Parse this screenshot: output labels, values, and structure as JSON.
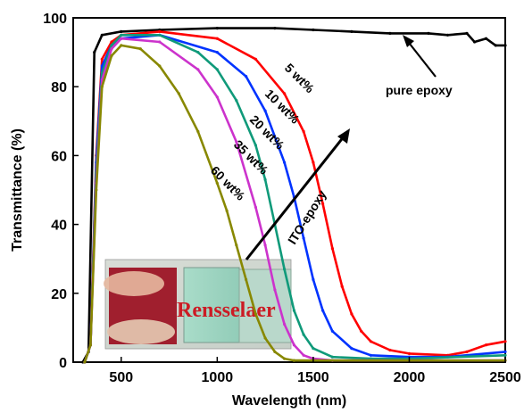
{
  "chart_data": {
    "type": "line",
    "xlabel": "Wavelength (nm)",
    "ylabel": "Transmittance (%)",
    "xlim": [
      250,
      2500
    ],
    "ylim": [
      0,
      100
    ],
    "xticks": [
      500,
      1000,
      1500,
      2000,
      2500
    ],
    "yticks": [
      0,
      20,
      40,
      60,
      80,
      100
    ],
    "grid": false,
    "legend": "none",
    "series": [
      {
        "name": "pure epoxy",
        "color": "#000000",
        "x": [
          300,
          330,
          360,
          400,
          500,
          700,
          1000,
          1300,
          1500,
          1700,
          1900,
          2100,
          2200,
          2300,
          2340,
          2400,
          2450,
          2500
        ],
        "y": [
          0,
          3,
          90,
          95,
          96,
          96.5,
          97,
          97,
          96.5,
          96,
          95.5,
          95.5,
          95,
          95.5,
          93,
          94,
          92,
          92
        ]
      },
      {
        "name": "5 wt%",
        "color": "#ff0000",
        "x": [
          310,
          340,
          370,
          400,
          450,
          500,
          700,
          1000,
          1200,
          1350,
          1450,
          1500,
          1550,
          1600,
          1650,
          1700,
          1750,
          1800,
          1900,
          2000,
          2200,
          2300,
          2400,
          2500
        ],
        "y": [
          0,
          5,
          60,
          88,
          93,
          95,
          96,
          94,
          88,
          78,
          67,
          58,
          46,
          33,
          22,
          14,
          9,
          6,
          3.5,
          2.5,
          2,
          3,
          5,
          6
        ]
      },
      {
        "name": "10 wt%",
        "color": "#0033ff",
        "x": [
          310,
          340,
          370,
          400,
          450,
          500,
          700,
          1000,
          1150,
          1250,
          1350,
          1400,
          1450,
          1500,
          1550,
          1600,
          1700,
          1800,
          2000,
          2200,
          2500
        ],
        "y": [
          0,
          5,
          58,
          86,
          92,
          94,
          95,
          90,
          83,
          73,
          58,
          48,
          36,
          24,
          15,
          9,
          4,
          2,
          1.5,
          1.5,
          3
        ]
      },
      {
        "name": "20 wt%",
        "color": "#109a7a",
        "x": [
          310,
          340,
          370,
          400,
          450,
          500,
          700,
          900,
          1000,
          1100,
          1200,
          1250,
          1300,
          1350,
          1400,
          1450,
          1500,
          1600,
          1800,
          2000,
          2500
        ],
        "y": [
          0,
          5,
          55,
          84,
          92,
          95,
          95,
          90,
          85,
          76,
          63,
          53,
          40,
          27,
          15,
          8,
          4,
          1.5,
          1,
          1,
          2
        ]
      },
      {
        "name": "35 wt%",
        "color": "#cc33cc",
        "x": [
          310,
          340,
          370,
          400,
          450,
          500,
          700,
          900,
          1000,
          1100,
          1200,
          1250,
          1300,
          1350,
          1400,
          1450,
          1500,
          1600,
          2500
        ],
        "y": [
          0,
          5,
          52,
          82,
          91,
          94,
          93,
          85,
          77,
          64,
          45,
          34,
          21,
          11,
          5,
          2,
          1,
          0.5,
          0.5
        ]
      },
      {
        "name": "60 wt%",
        "color": "#888800",
        "x": [
          310,
          340,
          370,
          400,
          450,
          500,
          600,
          700,
          800,
          900,
          1000,
          1050,
          1100,
          1150,
          1200,
          1250,
          1300,
          1350,
          1400,
          2500
        ],
        "y": [
          0,
          5,
          50,
          80,
          89,
          92,
          91,
          86,
          78,
          67,
          52,
          44,
          34,
          24,
          14,
          7,
          3,
          1,
          0.5,
          0.5
        ]
      }
    ],
    "annotations": [
      {
        "text": "pure epoxy"
      },
      {
        "text": "5 wt%"
      },
      {
        "text": "10 wt%"
      },
      {
        "text": "20 wt%"
      },
      {
        "text": "35 wt%"
      },
      {
        "text": "60 wt%"
      },
      {
        "text": "ITO-epoxy"
      }
    ],
    "inset_photo": {
      "text": "Rensselaer"
    }
  }
}
